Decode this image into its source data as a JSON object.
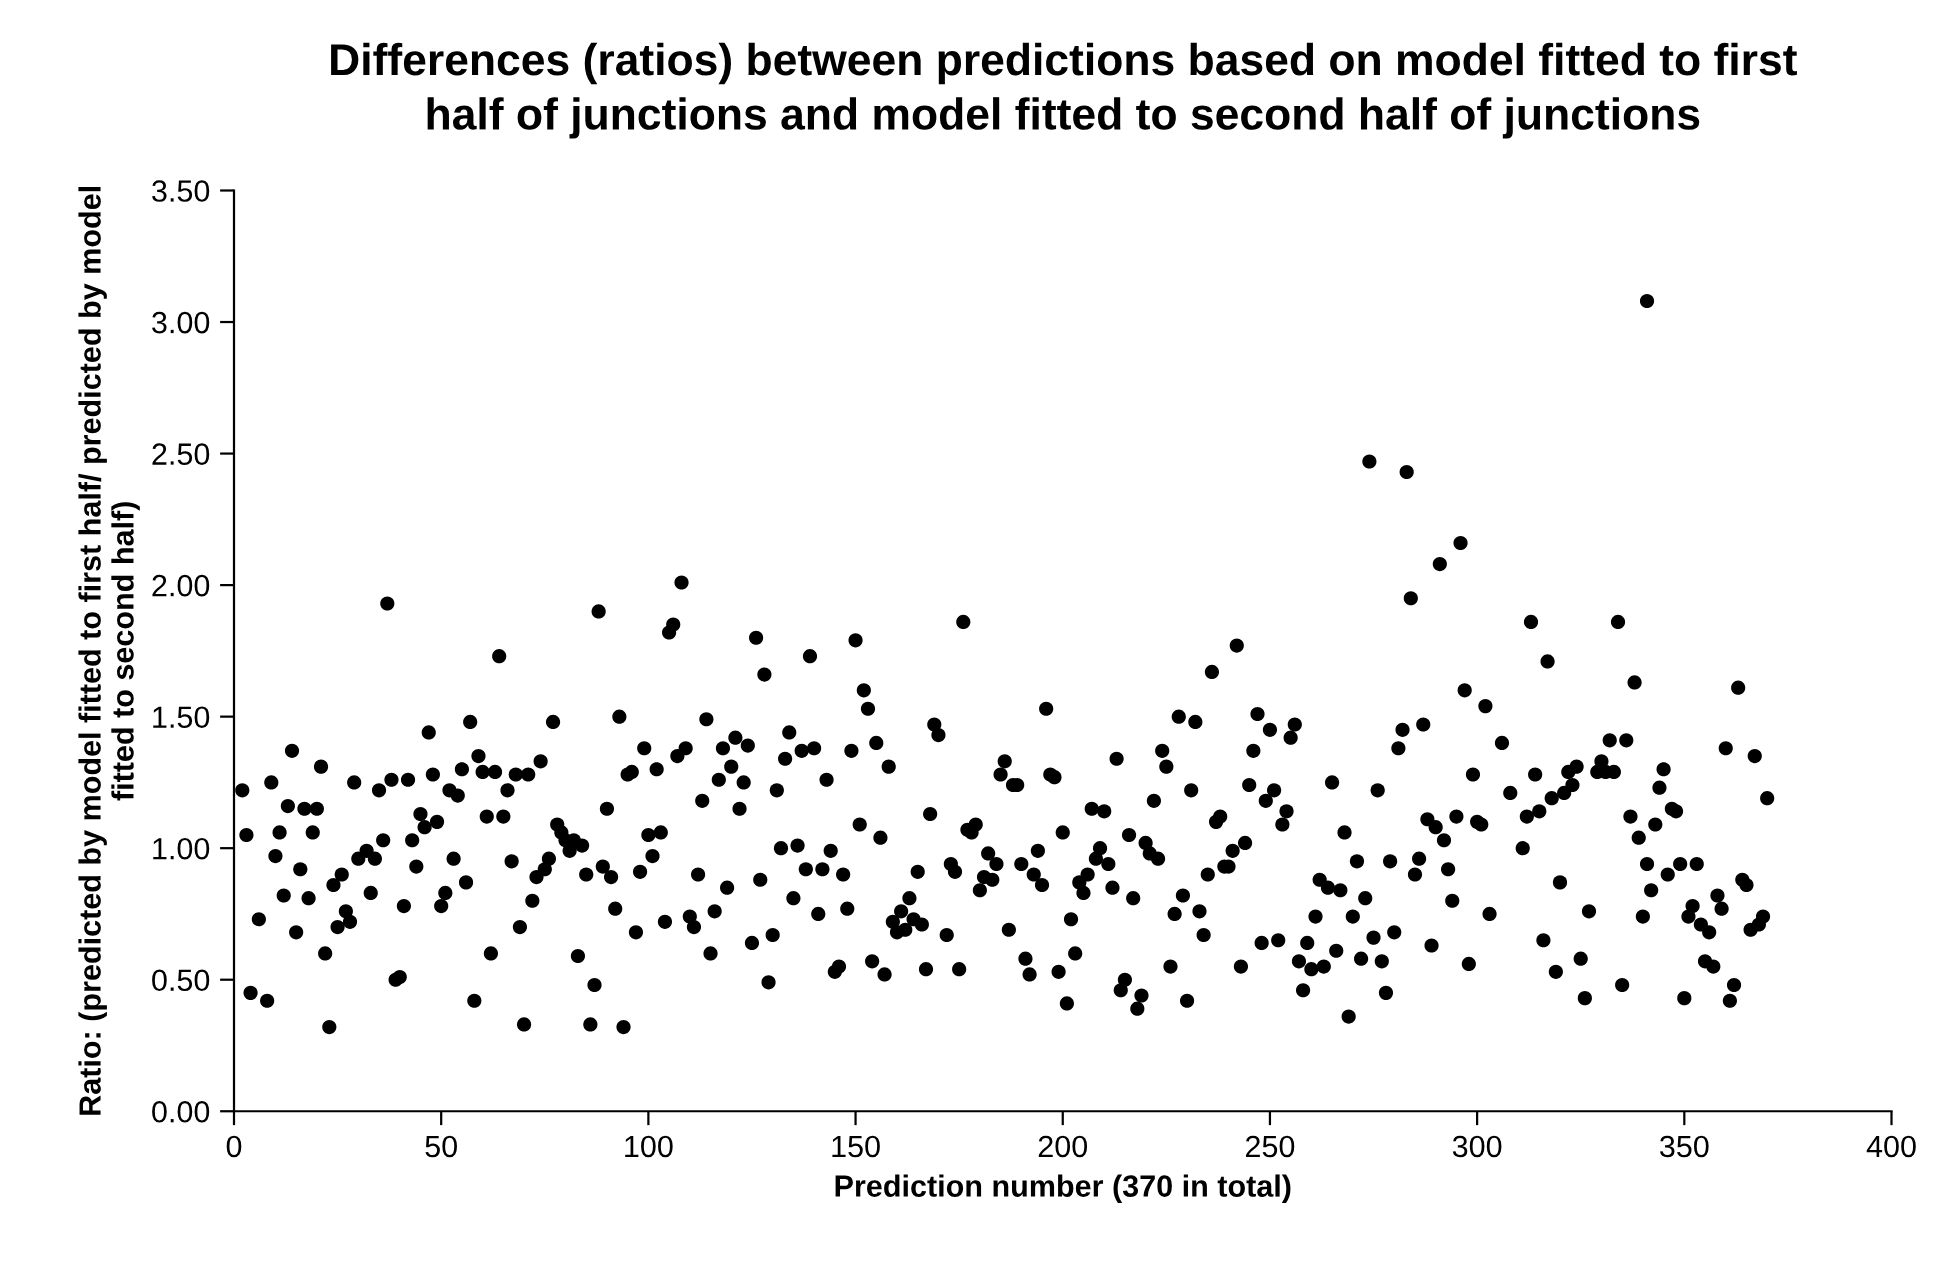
{
  "chart_data": {
    "type": "scatter",
    "title": "Differences (ratios) between predictions based on model fitted to first\nhalf of junctions and model fitted to second half of junctions",
    "xlabel": "Prediction number (370 in total)",
    "ylabel": "Ratio: (predicted by model fitted to first half/ predicted by model\nfitted to second half)",
    "xlim": [
      0,
      400
    ],
    "xticks": [
      0,
      50,
      100,
      150,
      200,
      250,
      300,
      350,
      400
    ],
    "ylim": [
      0,
      3.5
    ],
    "yticks": [
      {
        "value": 0,
        "label": "0.00"
      },
      {
        "value": 0.5,
        "label": "0.50"
      },
      {
        "value": 1,
        "label": "1.00"
      },
      {
        "value": 1.5,
        "label": "1.50"
      },
      {
        "value": 2,
        "label": "2.00"
      },
      {
        "value": 2.5,
        "label": "2.50"
      },
      {
        "value": 3,
        "label": "3.00"
      },
      {
        "value": 3.5,
        "label": "3.50"
      }
    ],
    "grid": false,
    "marker": "circle",
    "series": [
      {
        "color": "#000000",
        "x": [
          2,
          3,
          4,
          6,
          8,
          9,
          10,
          11,
          12,
          13,
          14,
          15,
          16,
          17,
          18,
          19,
          20,
          21,
          22,
          23,
          24,
          25,
          26,
          27,
          28,
          29,
          30,
          32,
          33,
          34,
          35,
          36,
          37,
          38,
          39,
          40,
          41,
          42,
          43,
          44,
          45,
          46,
          47,
          48,
          49,
          50,
          51,
          52,
          53,
          54,
          55,
          56,
          57,
          58,
          59,
          60,
          61,
          62,
          63,
          64,
          65,
          66,
          67,
          68,
          69,
          70,
          71,
          72,
          73,
          74,
          75,
          76,
          77,
          78,
          79,
          80,
          81,
          82,
          83,
          84,
          85,
          86,
          87,
          88,
          89,
          90,
          91,
          92,
          93,
          94,
          95,
          96,
          97,
          98,
          99,
          100,
          101,
          102,
          103,
          104,
          105,
          106,
          107,
          108,
          109,
          110,
          111,
          112,
          113,
          114,
          115,
          116,
          117,
          118,
          119,
          120,
          121,
          122,
          123,
          124,
          125,
          126,
          127,
          128,
          129,
          130,
          131,
          132,
          133,
          134,
          135,
          136,
          137,
          138,
          139,
          140,
          141,
          142,
          143,
          144,
          145,
          146,
          147,
          148,
          149,
          150,
          151,
          152,
          153,
          154,
          155,
          156,
          157,
          158,
          159,
          160,
          161,
          162,
          163,
          164,
          165,
          166,
          167,
          168,
          169,
          170,
          172,
          173,
          174,
          175,
          176,
          177,
          178,
          179,
          180,
          181,
          182,
          183,
          184,
          185,
          186,
          187,
          188,
          189,
          190,
          191,
          192,
          193,
          194,
          195,
          196,
          197,
          198,
          199,
          200,
          201,
          202,
          203,
          204,
          205,
          206,
          207,
          208,
          209,
          210,
          211,
          212,
          213,
          214,
          215,
          216,
          217,
          218,
          219,
          220,
          221,
          222,
          223,
          224,
          225,
          226,
          227,
          228,
          229,
          230,
          231,
          232,
          233,
          234,
          235,
          236,
          237,
          238,
          239,
          240,
          241,
          242,
          243,
          244,
          245,
          246,
          247,
          248,
          249,
          250,
          251,
          252,
          253,
          254,
          255,
          256,
          257,
          258,
          259,
          260,
          261,
          262,
          263,
          264,
          265,
          266,
          267,
          268,
          269,
          270,
          271,
          272,
          273,
          274,
          275,
          276,
          277,
          278,
          279,
          280,
          281,
          282,
          283,
          284,
          285,
          286,
          287,
          288,
          289,
          290,
          291,
          292,
          293,
          294,
          295,
          296,
          297,
          298,
          299,
          300,
          301,
          302,
          303,
          306,
          308,
          311,
          312,
          313,
          314,
          315,
          316,
          317,
          318,
          319,
          320,
          321,
          322,
          323,
          324,
          325,
          326,
          327,
          329,
          330,
          331,
          332,
          333,
          334,
          335,
          336,
          337,
          338,
          339,
          340,
          341,
          341,
          342,
          343,
          344,
          345,
          346,
          347,
          348,
          349,
          350,
          351,
          352,
          353,
          354,
          355,
          356,
          357,
          358,
          359,
          360,
          361,
          362,
          363,
          364,
          365,
          366,
          367,
          368,
          369,
          370
        ],
        "values": [
          1.22,
          1.05,
          0.45,
          0.73,
          0.42,
          1.25,
          0.97,
          1.06,
          0.82,
          1.16,
          1.37,
          0.68,
          0.92,
          1.15,
          0.81,
          1.06,
          1.15,
          1.31,
          0.6,
          0.32,
          0.86,
          0.7,
          0.9,
          0.76,
          0.72,
          1.25,
          0.96,
          0.99,
          0.83,
          0.96,
          1.22,
          1.03,
          1.93,
          1.26,
          0.5,
          0.51,
          0.78,
          1.26,
          1.03,
          0.93,
          1.13,
          1.08,
          1.44,
          1.28,
          1.1,
          0.78,
          0.83,
          1.22,
          0.96,
          1.2,
          1.3,
          0.87,
          1.48,
          0.42,
          1.35,
          1.29,
          1.12,
          0.6,
          1.29,
          1.73,
          1.12,
          1.22,
          0.95,
          1.28,
          0.7,
          0.33,
          1.28,
          0.8,
          0.89,
          1.33,
          0.92,
          0.96,
          1.48,
          1.09,
          1.06,
          1.03,
          0.99,
          1.03,
          0.59,
          1.01,
          0.9,
          0.33,
          0.48,
          1.9,
          0.93,
          1.15,
          0.89,
          0.77,
          1.5,
          0.32,
          1.28,
          1.29,
          0.68,
          0.91,
          1.38,
          1.05,
          0.97,
          1.3,
          1.06,
          0.72,
          1.82,
          1.85,
          1.35,
          2.01,
          1.38,
          0.74,
          0.7,
          0.9,
          1.18,
          1.49,
          0.6,
          0.76,
          1.26,
          1.38,
          0.85,
          1.31,
          1.42,
          1.15,
          1.25,
          1.39,
          0.64,
          1.8,
          0.88,
          1.66,
          0.49,
          0.67,
          1.22,
          1.0,
          1.34,
          1.44,
          0.81,
          1.01,
          1.37,
          0.92,
          1.73,
          1.38,
          0.75,
          0.92,
          1.26,
          0.99,
          0.53,
          0.55,
          0.9,
          0.77,
          1.37,
          1.79,
          1.09,
          1.6,
          1.53,
          0.57,
          1.4,
          1.04,
          0.52,
          1.31,
          0.72,
          0.68,
          0.76,
          0.69,
          0.81,
          0.73,
          0.91,
          0.71,
          0.54,
          1.13,
          1.47,
          1.43,
          0.67,
          0.94,
          0.91,
          0.54,
          1.86,
          1.07,
          1.06,
          1.09,
          0.84,
          0.89,
          0.98,
          0.88,
          0.94,
          1.28,
          1.33,
          0.69,
          1.24,
          1.24,
          0.94,
          0.58,
          0.52,
          0.9,
          0.99,
          0.86,
          1.53,
          1.28,
          1.27,
          0.53,
          1.06,
          0.41,
          0.73,
          0.6,
          0.87,
          0.83,
          0.9,
          1.15,
          0.96,
          1.0,
          1.14,
          0.94,
          0.85,
          1.34,
          0.46,
          0.5,
          1.05,
          0.81,
          0.39,
          0.44,
          1.02,
          0.98,
          1.18,
          0.96,
          1.37,
          1.31,
          0.55,
          0.75,
          1.5,
          0.82,
          0.42,
          1.22,
          1.48,
          0.76,
          0.67,
          0.9,
          1.67,
          1.1,
          1.12,
          0.93,
          0.93,
          0.99,
          1.77,
          0.55,
          1.02,
          1.24,
          1.37,
          1.51,
          0.64,
          1.18,
          1.45,
          1.22,
          0.65,
          1.09,
          1.14,
          1.42,
          1.47,
          0.57,
          0.46,
          0.64,
          0.54,
          0.74,
          0.88,
          0.55,
          0.85,
          1.25,
          0.61,
          0.84,
          1.06,
          0.36,
          0.74,
          0.95,
          0.58,
          0.81,
          2.47,
          0.66,
          1.22,
          0.57,
          0.45,
          0.95,
          0.68,
          1.38,
          1.45,
          2.43,
          1.95,
          0.9,
          0.96,
          1.47,
          1.11,
          0.63,
          1.08,
          2.08,
          1.03,
          0.92,
          0.8,
          1.12,
          2.16,
          1.6,
          0.56,
          1.28,
          1.1,
          1.09,
          1.54,
          0.75,
          1.4,
          1.21,
          1.0,
          1.12,
          1.86,
          1.28,
          1.14,
          0.65,
          1.71,
          1.19,
          0.53,
          0.87,
          1.21,
          1.29,
          1.24,
          1.31,
          0.58,
          0.43,
          0.76,
          1.29,
          1.33,
          1.29,
          1.41,
          1.29,
          1.86,
          0.48,
          1.41,
          1.12,
          1.63,
          1.04,
          0.74,
          3.08,
          0.94,
          0.84,
          1.09,
          1.23,
          1.3,
          0.9,
          1.15,
          1.14,
          0.94,
          0.43,
          0.74,
          0.78,
          0.94,
          0.71,
          0.57,
          0.68,
          0.55,
          0.82,
          0.77,
          1.38,
          0.42,
          0.48,
          1.61,
          0.88,
          0.86,
          0.69,
          1.35,
          0.71,
          0.74,
          1.19
        ]
      }
    ]
  }
}
